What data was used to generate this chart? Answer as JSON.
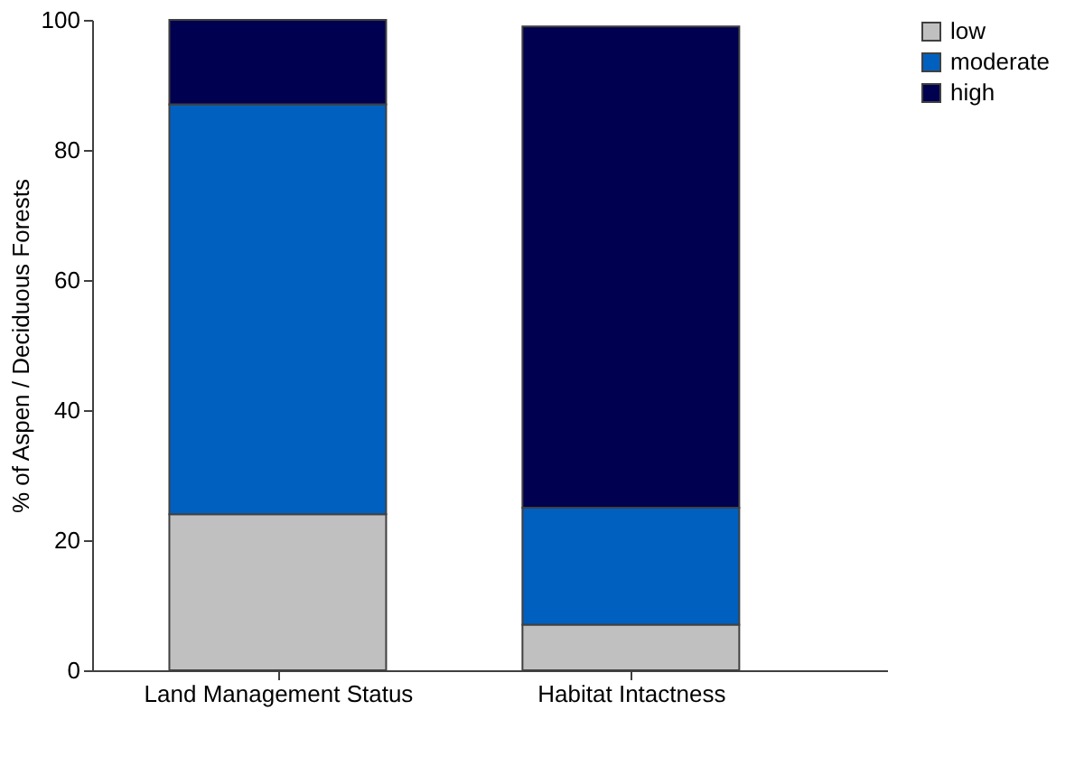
{
  "chart_data": {
    "type": "bar",
    "stacked": true,
    "ylabel": "% of Aspen / Deciduous Forests",
    "categories": [
      "Land Management Status",
      "Habitat Intactness"
    ],
    "series": [
      {
        "name": "low",
        "color": "#c0c0c0",
        "values": [
          24,
          7
        ]
      },
      {
        "name": "moderate",
        "color": "#0060c0",
        "values": [
          63,
          18
        ]
      },
      {
        "name": "high",
        "color": "#000050",
        "values": [
          13,
          74
        ]
      }
    ],
    "ylim": [
      0,
      100
    ],
    "yticks": [
      0,
      20,
      40,
      60,
      80,
      100
    ],
    "grid": false,
    "legend": "right"
  }
}
